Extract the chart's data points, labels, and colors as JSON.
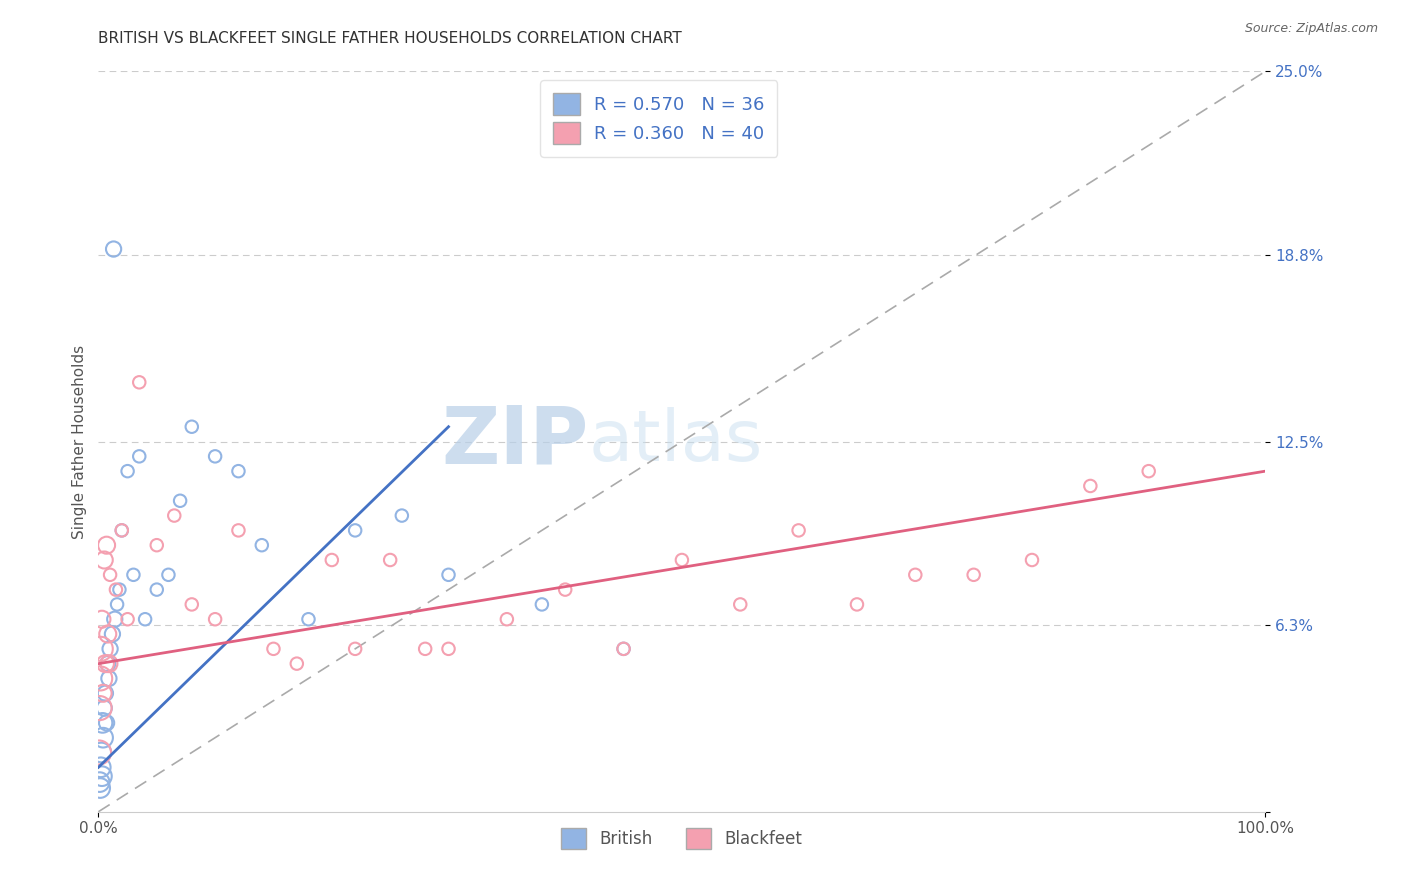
{
  "title": "BRITISH VS BLACKFEET SINGLE FATHER HOUSEHOLDS CORRELATION CHART",
  "source": "Source: ZipAtlas.com",
  "ylabel": "Single Father Households",
  "xlim": [
    0,
    100
  ],
  "ylim": [
    0,
    25
  ],
  "ytick_vals": [
    0,
    6.3,
    12.5,
    18.8,
    25.0
  ],
  "ytick_labels": [
    "",
    "6.3%",
    "12.5%",
    "18.8%",
    "25.0%"
  ],
  "xtick_vals": [
    0,
    100
  ],
  "xtick_labels": [
    "0.0%",
    "100.0%"
  ],
  "british_color": "#92b4e3",
  "blackfeet_color": "#f4a0b0",
  "british_line_color": "#4472c4",
  "blackfeet_line_color": "#e06080",
  "british_R": 0.57,
  "british_N": 36,
  "blackfeet_R": 0.36,
  "blackfeet_N": 40,
  "watermark_zip": "ZIP",
  "watermark_atlas": "atlas",
  "background_color": "#ffffff",
  "grid_color": "#cccccc",
  "british_x": [
    0.1,
    0.15,
    0.2,
    0.25,
    0.3,
    0.35,
    0.4,
    0.5,
    0.6,
    0.7,
    0.8,
    0.9,
    1.0,
    1.2,
    1.4,
    1.6,
    1.8,
    2.0,
    2.5,
    3.0,
    3.5,
    4.0,
    5.0,
    6.0,
    7.0,
    8.0,
    10.0,
    12.0,
    14.0,
    18.0,
    22.0,
    26.0,
    30.0,
    38.0,
    45.0,
    1.3
  ],
  "british_y": [
    1.0,
    0.8,
    1.5,
    2.0,
    1.2,
    3.0,
    2.5,
    3.5,
    4.0,
    3.0,
    5.0,
    4.5,
    5.5,
    6.0,
    6.5,
    7.0,
    7.5,
    9.5,
    11.5,
    8.0,
    12.0,
    6.5,
    7.5,
    8.0,
    10.5,
    13.0,
    12.0,
    11.5,
    9.0,
    6.5,
    9.5,
    10.0,
    8.0,
    7.0,
    5.5,
    19.0
  ],
  "blackfeet_x": [
    0.05,
    0.1,
    0.15,
    0.2,
    0.3,
    0.4,
    0.5,
    0.6,
    0.7,
    0.8,
    0.9,
    1.0,
    1.5,
    2.0,
    2.5,
    3.5,
    5.0,
    6.5,
    8.0,
    10.0,
    12.0,
    15.0,
    17.0,
    20.0,
    22.0,
    25.0,
    28.0,
    30.0,
    35.0,
    40.0,
    45.0,
    50.0,
    55.0,
    60.0,
    65.0,
    70.0,
    75.0,
    80.0,
    85.0,
    90.0
  ],
  "blackfeet_y": [
    2.0,
    3.5,
    4.5,
    5.5,
    6.5,
    4.0,
    8.5,
    5.0,
    9.0,
    6.0,
    5.0,
    8.0,
    7.5,
    9.5,
    6.5,
    14.5,
    9.0,
    10.0,
    7.0,
    6.5,
    9.5,
    5.5,
    5.0,
    8.5,
    5.5,
    8.5,
    5.5,
    5.5,
    6.5,
    7.5,
    5.5,
    8.5,
    7.0,
    9.5,
    7.0,
    8.0,
    8.0,
    8.5,
    11.0,
    11.5
  ],
  "brit_line_x0": 0,
  "brit_line_y0": 1.5,
  "brit_line_x1": 30,
  "brit_line_y1": 13.0,
  "black_line_x0": 0,
  "black_line_y0": 5.0,
  "black_line_x1": 100,
  "black_line_y1": 11.5,
  "diag_x0": 0,
  "diag_y0": 0,
  "diag_x1": 100,
  "diag_y1": 25
}
